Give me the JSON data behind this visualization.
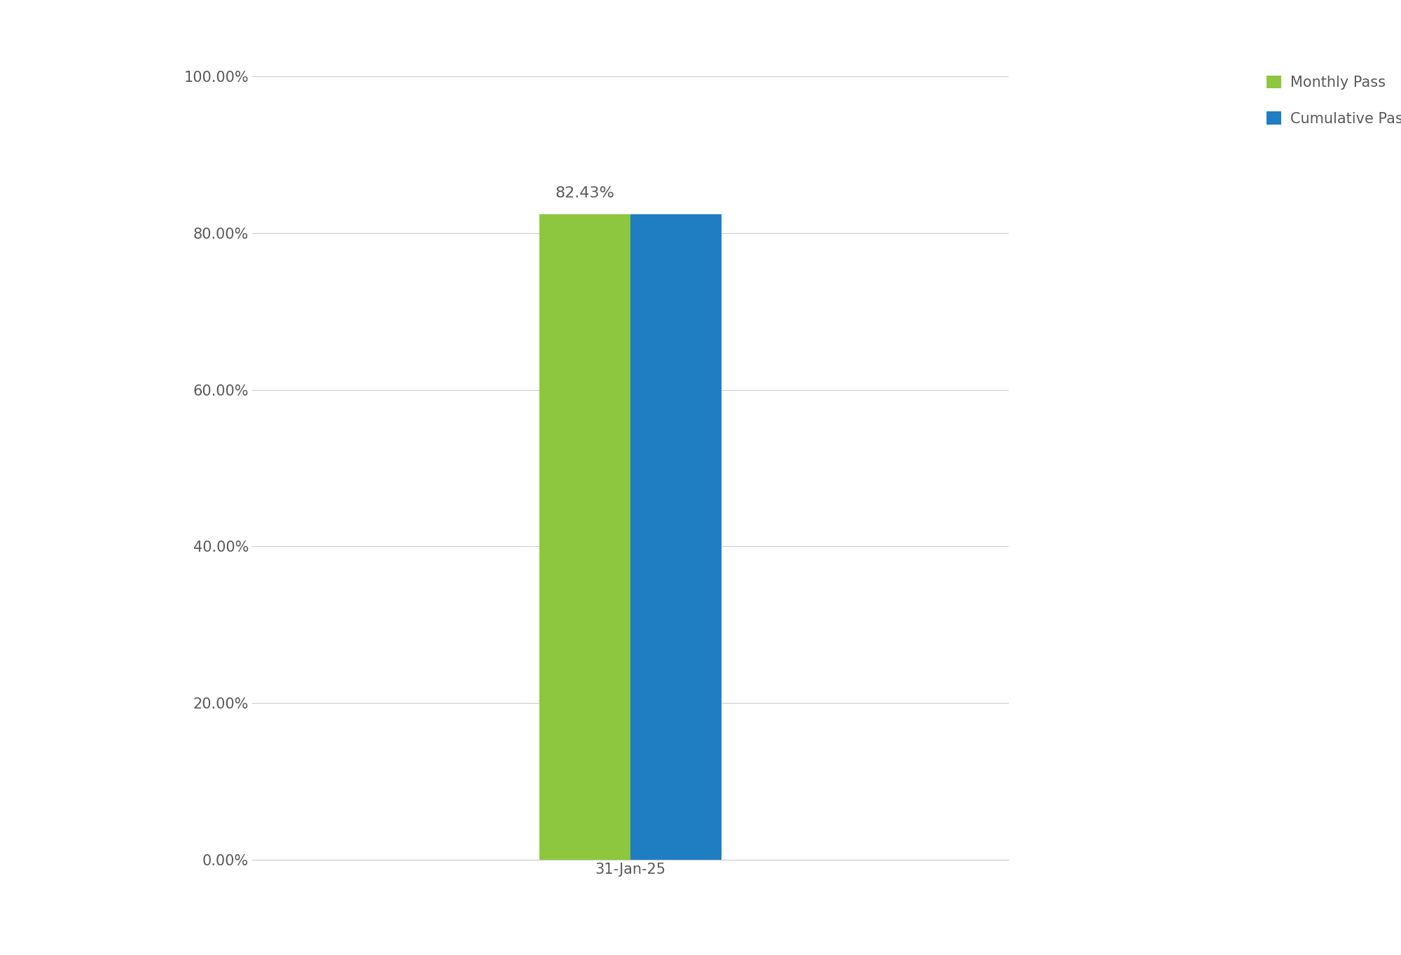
{
  "categories": [
    "31-Jan-25"
  ],
  "monthly_pass": [
    0.8243
  ],
  "cumulative_pass": [
    0.8243
  ],
  "monthly_color": "#8DC63F",
  "cumulative_color": "#1F7EC2",
  "annotation_value": "82.43%",
  "legend_labels": [
    "Monthly Pass",
    "Cumulative Pass"
  ],
  "ylim": [
    0,
    1.0
  ],
  "yticks": [
    0.0,
    0.2,
    0.4,
    0.6,
    0.8,
    1.0
  ],
  "ytick_labels": [
    "0.00%",
    "20.00%",
    "40.00%",
    "60.00%",
    "80.00%",
    "100.00%"
  ],
  "background_color": "#FFFFFF",
  "grid_color": "#CCCCCC",
  "text_color": "#595959",
  "bar_width": 0.12,
  "annotation_fontsize": 16,
  "tick_fontsize": 15,
  "legend_fontsize": 15
}
